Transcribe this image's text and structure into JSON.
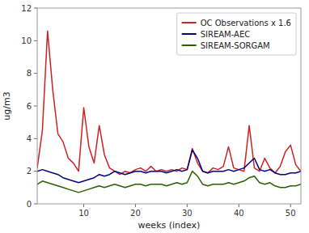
{
  "chart_data": {
    "type": "line",
    "title": "",
    "xlabel": "weeks (index)",
    "ylabel": "ug/m3",
    "x": [
      1,
      2,
      3,
      4,
      5,
      6,
      7,
      8,
      9,
      10,
      11,
      12,
      13,
      14,
      15,
      16,
      17,
      18,
      19,
      20,
      21,
      22,
      23,
      24,
      25,
      26,
      27,
      28,
      29,
      30,
      31,
      32,
      33,
      34,
      35,
      36,
      37,
      38,
      39,
      40,
      41,
      42,
      43,
      44,
      45,
      46,
      47,
      48,
      49,
      50,
      51,
      52
    ],
    "series": [
      {
        "name": "OC Observations x 1.6",
        "color": "#cc2222",
        "values": [
          2.2,
          4.5,
          10.6,
          7.0,
          4.3,
          3.8,
          2.8,
          2.5,
          2.0,
          5.9,
          3.5,
          2.5,
          4.8,
          3.0,
          2.2,
          2.0,
          1.8,
          2.0,
          1.9,
          2.1,
          2.2,
          2.0,
          2.3,
          2.0,
          2.1,
          2.0,
          2.1,
          2.0,
          2.2,
          2.1,
          3.4,
          2.5,
          2.0,
          1.9,
          2.2,
          2.1,
          2.3,
          3.5,
          2.2,
          2.1,
          2.0,
          4.8,
          2.2,
          2.0,
          2.8,
          2.2,
          1.9,
          2.3,
          3.2,
          3.6,
          2.4,
          2.0
        ]
      },
      {
        "name": "SIREAM-AEC",
        "color": "#000080",
        "values": [
          2.0,
          2.1,
          2.0,
          1.9,
          1.8,
          1.6,
          1.5,
          1.4,
          1.3,
          1.4,
          1.5,
          1.6,
          1.8,
          1.7,
          1.8,
          2.0,
          1.9,
          1.8,
          1.9,
          2.0,
          2.0,
          1.9,
          2.0,
          2.0,
          2.0,
          1.9,
          2.0,
          2.1,
          2.0,
          2.1,
          3.3,
          2.8,
          2.0,
          1.9,
          2.0,
          2.0,
          2.0,
          2.1,
          2.0,
          2.1,
          2.2,
          2.5,
          2.8,
          2.1,
          2.0,
          2.1,
          1.9,
          1.8,
          1.8,
          1.9,
          1.9,
          2.0
        ]
      },
      {
        "name": "SIREAM-SORGAM",
        "color": "#2a6000",
        "values": [
          1.2,
          1.4,
          1.3,
          1.2,
          1.1,
          1.0,
          0.9,
          0.8,
          0.7,
          0.8,
          0.9,
          1.0,
          1.1,
          1.0,
          1.1,
          1.2,
          1.1,
          1.0,
          1.1,
          1.2,
          1.2,
          1.1,
          1.2,
          1.2,
          1.2,
          1.1,
          1.2,
          1.3,
          1.2,
          1.3,
          2.0,
          1.7,
          1.2,
          1.1,
          1.2,
          1.2,
          1.2,
          1.3,
          1.2,
          1.3,
          1.4,
          1.6,
          1.7,
          1.3,
          1.2,
          1.3,
          1.1,
          1.0,
          1.0,
          1.1,
          1.1,
          1.2
        ]
      }
    ],
    "xlim": [
      1,
      52
    ],
    "ylim": [
      0,
      12
    ],
    "xticks": [
      10,
      20,
      30,
      40,
      50
    ],
    "yticks": [
      0,
      2,
      4,
      6,
      8,
      10,
      12
    ],
    "grid": false,
    "legend": "upper right"
  }
}
